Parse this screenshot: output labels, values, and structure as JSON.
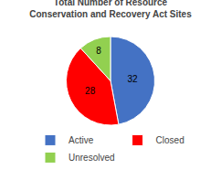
{
  "chart_data": {
    "type": "pie",
    "title": "Total Number of Resource\nConservation and Recovery Act Sites",
    "categories": [
      "Active",
      "Closed",
      "Unresolved"
    ],
    "values": [
      32,
      28,
      8
    ],
    "colors": [
      "#4472C4",
      "#FF0000",
      "#92D050"
    ],
    "data_labels": true,
    "legend": "bottom"
  }
}
